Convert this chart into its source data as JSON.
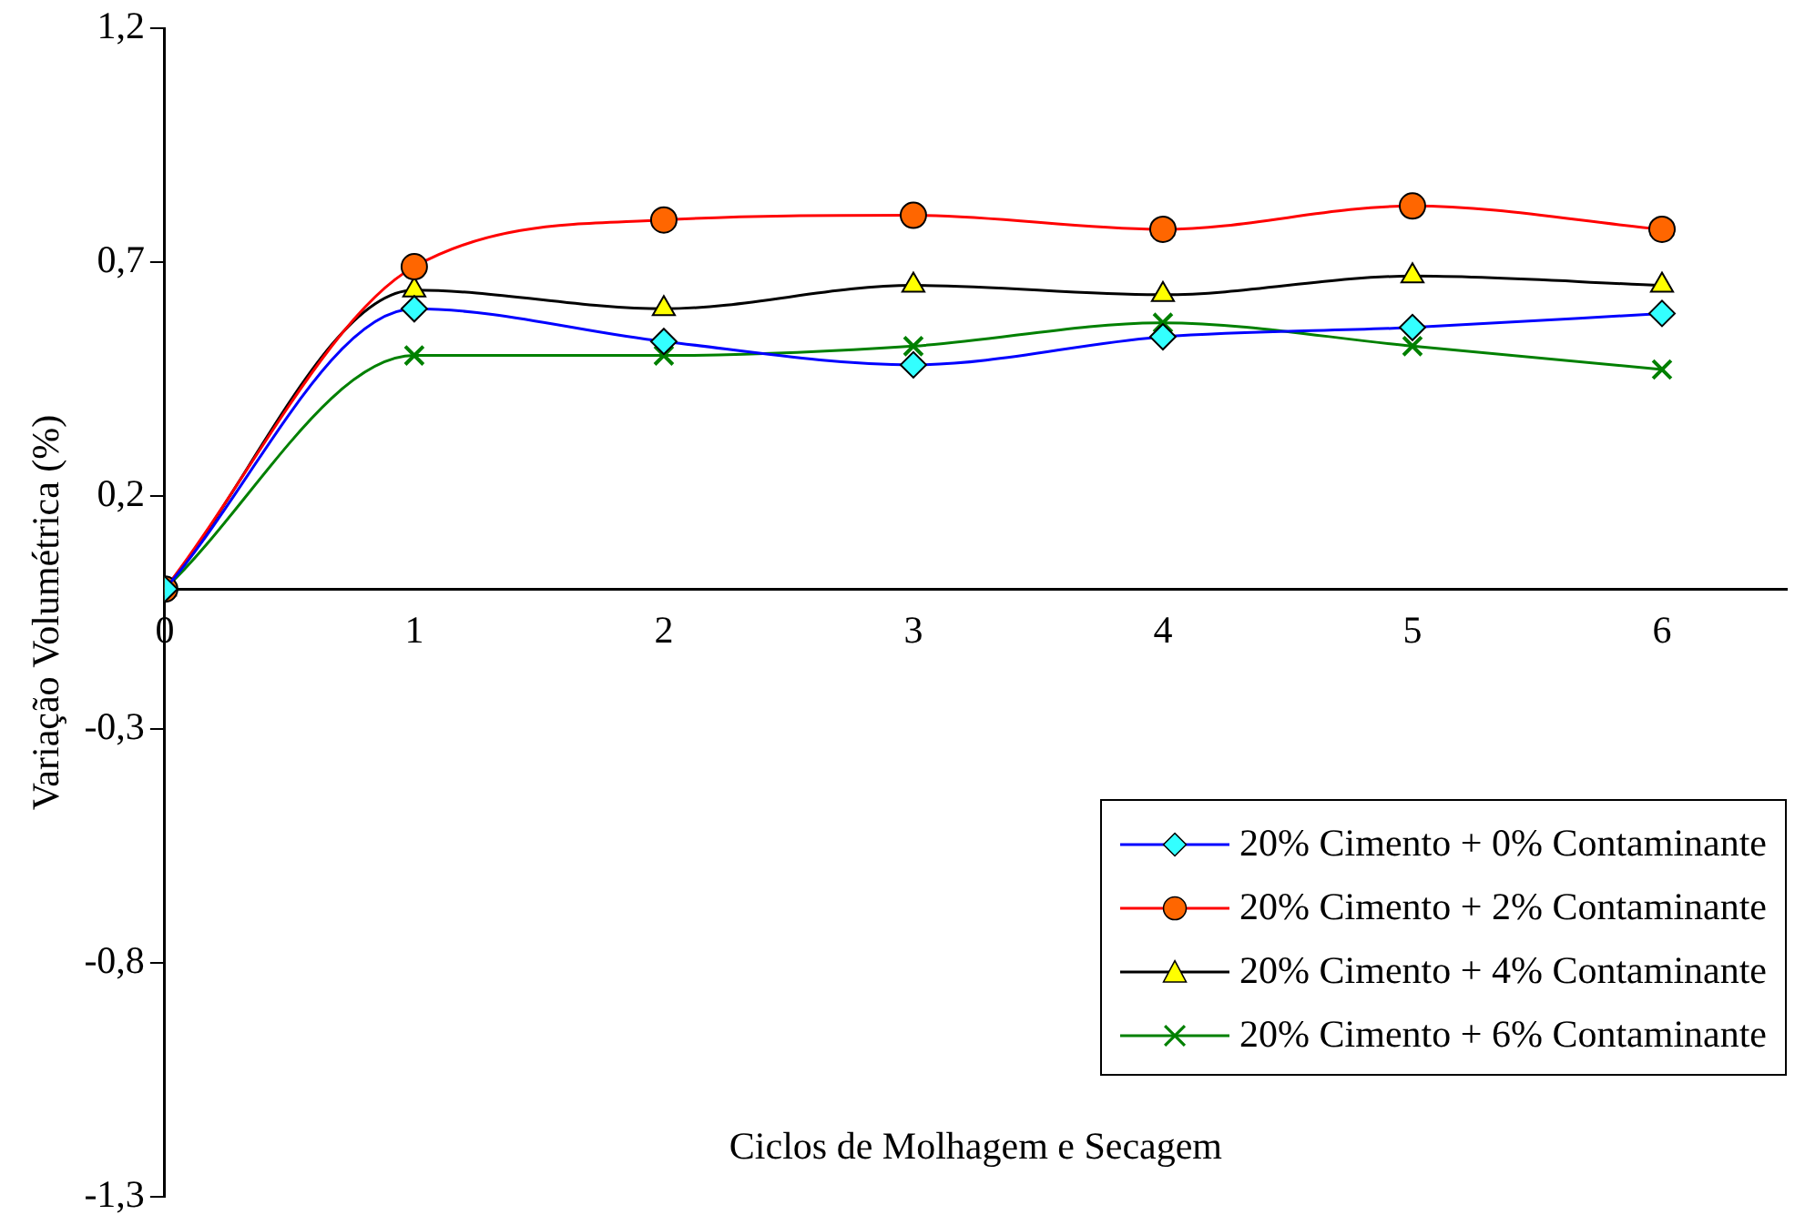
{
  "chart_data": {
    "type": "line",
    "xlabel": "Ciclos de Molhagem e Secagem",
    "ylabel": "Variação Volumétrica (%)",
    "x": [
      0,
      1,
      2,
      3,
      4,
      5,
      6
    ],
    "xlim": [
      0,
      6.5
    ],
    "xticks": [
      0,
      1,
      2,
      3,
      4,
      5,
      6
    ],
    "ylim": [
      -1.3,
      1.2
    ],
    "yticks": [
      {
        "value": -1.3,
        "label": "-1,3"
      },
      {
        "value": -0.8,
        "label": "-0,8"
      },
      {
        "value": -0.3,
        "label": "-0,3"
      },
      {
        "value": 0.2,
        "label": "0,2"
      },
      {
        "value": 0.7,
        "label": "0,7"
      },
      {
        "value": 1.2,
        "label": "1,2"
      }
    ],
    "grid": false,
    "legend": "bottom right",
    "series": [
      {
        "name": "20% Cimento + 0% Contaminante",
        "color": "#0000ff",
        "marker": "diamond",
        "colors": [
          "#33ffff",
          "#33ffff",
          "#33ffff",
          "#33ffff",
          "#33ffff",
          "#33ffff",
          "#33ffff"
        ],
        "values": [
          0,
          0.6,
          0.53,
          0.48,
          0.54,
          0.56,
          0.59
        ]
      },
      {
        "name": "20% Cimento + 2% Contaminante",
        "color": "#ff0000",
        "marker": "circle",
        "colors": [
          "#ff6600",
          "#ff6600",
          "#ff6600",
          "#ff6600",
          "#ff6600",
          "#ff6600",
          "#ff6600"
        ],
        "values": [
          0,
          0.69,
          0.79,
          0.8,
          0.77,
          0.82,
          0.77
        ]
      },
      {
        "name": "20% Cimento + 4% Contaminante",
        "color": "#000000",
        "marker": "triangle",
        "colors": [
          "#ffff00",
          "#ffff00",
          "#ffff00",
          "#ffff00",
          "#ffff00",
          "#ffff00",
          "#ffff00"
        ],
        "values": [
          0,
          0.64,
          0.6,
          0.65,
          0.63,
          0.67,
          0.65
        ]
      },
      {
        "name": "20% Cimento + 6% Contaminante",
        "color": "#008000",
        "marker": "cross",
        "values": [
          0,
          0.5,
          0.5,
          0.52,
          0.57,
          0.52,
          0.47
        ]
      }
    ]
  }
}
